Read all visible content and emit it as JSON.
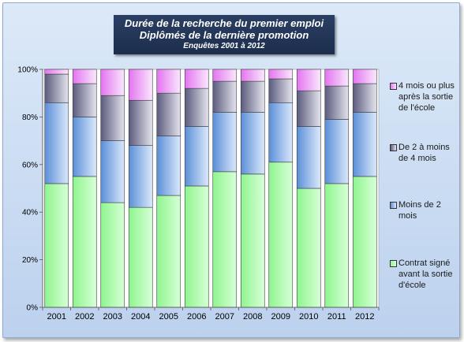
{
  "title": {
    "line1": "Durée de la recherche du premier emploi",
    "line2": "Diplômés de la dernière promotion",
    "line3": "Enquêtes 2001 à 2012"
  },
  "colors": {
    "s0": [
      "#8ef58e",
      "#d8ffd8"
    ],
    "s1": [
      "#5b8fd8",
      "#dbe9fb"
    ],
    "s2": [
      "#5b5b7d",
      "#e4e4ee"
    ],
    "s3": [
      "#e474f0",
      "#fae8fd"
    ]
  },
  "chart_data": {
    "type": "bar",
    "stacked": true,
    "categories": [
      "2001",
      "2002",
      "2003",
      "2004",
      "2005",
      "2006",
      "2007",
      "2008",
      "2009",
      "2010",
      "2011",
      "2012"
    ],
    "ylim": [
      0,
      100
    ],
    "yticks": [
      "0%",
      "20%",
      "40%",
      "60%",
      "80%",
      "100%"
    ],
    "grid": false,
    "legend_position": "right",
    "series": [
      {
        "name": "Contrat signé avant la sortie d'école",
        "values": [
          52,
          55,
          44,
          42,
          47,
          51,
          57,
          56,
          61,
          50,
          52,
          55
        ]
      },
      {
        "name": "Moins de 2 mois",
        "values": [
          34,
          25,
          26,
          26,
          25,
          25,
          25,
          26,
          25,
          26,
          27,
          27
        ]
      },
      {
        "name": "De 2 à moins de 4 mois",
        "values": [
          12,
          14,
          19,
          19,
          18,
          16,
          13,
          13,
          10,
          15,
          14,
          12
        ]
      },
      {
        "name": "4 mois ou plus après la sortie de l'école",
        "values": [
          2,
          6,
          11,
          13,
          10,
          8,
          5,
          5,
          4,
          9,
          7,
          6
        ]
      }
    ]
  },
  "legend": [
    {
      "label": "4 mois ou plus après la sortie de l'école"
    },
    {
      "label": "De 2 à moins de 4 mois"
    },
    {
      "label": "Moins de 2 mois"
    },
    {
      "label": "Contrat signé avant la sortie d'école"
    }
  ]
}
